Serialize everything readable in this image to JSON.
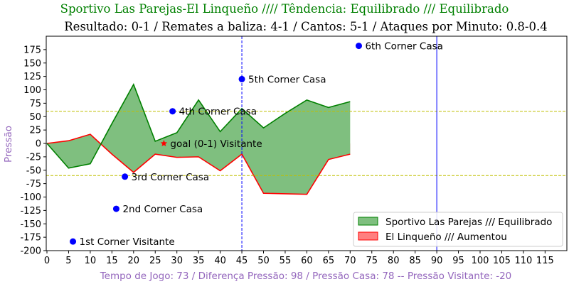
{
  "chart_data": {
    "type": "area",
    "title": "Sportivo Las Parejas-El Linqueño //// Têndencia: Equilibrado /// Equilibrado",
    "subtitle": "Resultado: 0-1 / Remates a baliza: 4-1 / Cantos: 5-1 / Ataques por Minuto: 0.8-0.4",
    "xlabel": "Tempo de Jogo: 73 / Diferença Pressão: 98 / Pressão Casa: 78 -- Pressão Visitante: -20",
    "ylabel": "Pressão",
    "xlim": [
      0,
      120
    ],
    "ylim": [
      -200,
      200
    ],
    "x_ticks": [
      0,
      5,
      10,
      15,
      20,
      25,
      30,
      35,
      40,
      45,
      50,
      55,
      60,
      65,
      70,
      75,
      80,
      85,
      90,
      95,
      100,
      105,
      110,
      115
    ],
    "y_ticks": [
      175,
      150,
      125,
      100,
      75,
      50,
      25,
      0,
      -25,
      -50,
      -75,
      -100,
      -125,
      -150,
      -175,
      -200
    ],
    "series": [
      {
        "name": "Sportivo Las Parejas /// Equilibrado",
        "color": "#008000",
        "fill": "#7fbf7f",
        "x": [
          0,
          5,
          10,
          15,
          20,
          25,
          30,
          35,
          40,
          45,
          50,
          55,
          60,
          65,
          70
        ],
        "values": [
          0,
          -46,
          -38,
          37,
          110,
          4,
          20,
          81,
          22,
          65,
          29,
          56,
          81,
          67,
          78
        ]
      },
      {
        "name": "El Linqueño /// Aumentou",
        "color": "#ff0000",
        "fill": "#ff7f7f",
        "x": [
          0,
          5,
          10,
          15,
          20,
          25,
          30,
          35,
          40,
          45,
          50,
          55,
          60,
          65,
          70
        ],
        "values": [
          0,
          5,
          17,
          -20,
          -54,
          -20,
          -26,
          -25,
          -51,
          -20,
          -93,
          -94,
          -95,
          -30,
          -20
        ]
      }
    ],
    "reference_lines": {
      "horizontal": [
        60,
        -60
      ],
      "vertical_dashed": [
        45
      ],
      "vertical_solid": [
        90
      ]
    },
    "annotations": [
      {
        "label": "1st Corner Visitante",
        "x": 6,
        "y": -183,
        "marker": "dot",
        "color": "#0000ff"
      },
      {
        "label": "2nd Corner Casa",
        "x": 16,
        "y": -122,
        "marker": "dot",
        "color": "#0000ff"
      },
      {
        "label": "3rd Corner Casa",
        "x": 18,
        "y": -62,
        "marker": "dot",
        "color": "#0000ff"
      },
      {
        "label": "4th Corner Casa",
        "x": 29,
        "y": 60,
        "marker": "dot",
        "color": "#0000ff"
      },
      {
        "label": "5th Corner Casa",
        "x": 45,
        "y": 120,
        "marker": "dot",
        "color": "#0000ff"
      },
      {
        "label": "6th Corner Casa",
        "x": 72,
        "y": 182,
        "marker": "dot",
        "color": "#0000ff"
      },
      {
        "label": "goal (0-1) Visitante",
        "x": 27,
        "y": 0,
        "marker": "star",
        "color": "#ff0000"
      }
    ],
    "legend_position": "lower-right",
    "grid": false
  }
}
